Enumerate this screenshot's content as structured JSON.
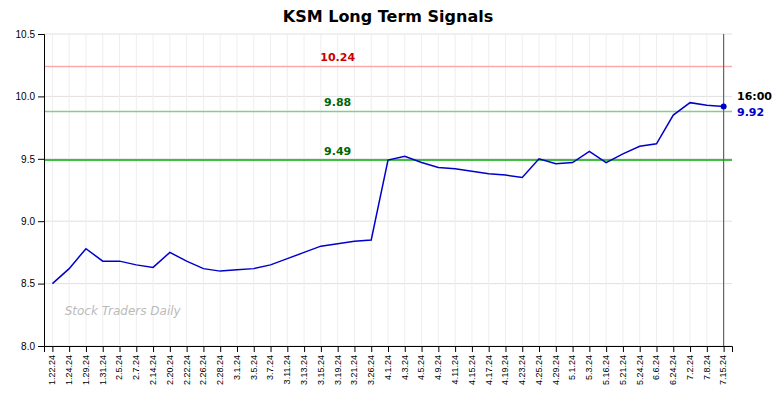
{
  "chart_data": {
    "type": "line",
    "title": "KSM Long Term Signals",
    "categories": [
      "1.22.24",
      "1.24.24",
      "1.29.24",
      "1.31.24",
      "2.5.24",
      "2.7.24",
      "2.14.24",
      "2.20.24",
      "2.22.24",
      "2.26.24",
      "2.28.24",
      "3.1.24",
      "3.5.24",
      "3.7.24",
      "3.11.24",
      "3.13.24",
      "3.15.24",
      "3.19.24",
      "3.21.24",
      "3.26.24",
      "4.1.24",
      "4.3.24",
      "4.5.24",
      "4.9.24",
      "4.11.24",
      "4.15.24",
      "4.17.24",
      "4.19.24",
      "4.23.24",
      "4.25.24",
      "4.29.24",
      "5.1.24",
      "5.3.24",
      "5.16.24",
      "5.21.24",
      "5.24.24",
      "6.6.24",
      "6.24.24",
      "7.2.24",
      "7.8.24",
      "7.15.24"
    ],
    "values": [
      8.5,
      8.62,
      8.78,
      8.68,
      8.68,
      8.65,
      8.63,
      8.75,
      8.68,
      8.62,
      8.6,
      8.61,
      8.62,
      8.65,
      8.7,
      8.75,
      8.8,
      8.82,
      8.84,
      8.85,
      9.49,
      9.52,
      9.47,
      9.43,
      9.42,
      9.4,
      9.38,
      9.37,
      9.35,
      9.5,
      9.46,
      9.47,
      9.56,
      9.47,
      9.54,
      9.6,
      9.62,
      9.85,
      9.95,
      9.93,
      9.92
    ],
    "color": "#0000cc",
    "ylim": [
      8.0,
      10.5
    ],
    "yticks": [
      {
        "value": 8.0,
        "label": "8.0"
      },
      8.5,
      {
        "value": 9.0,
        "label": "9.0"
      },
      9.5,
      {
        "value": 10.0,
        "label": "10.0"
      },
      10.5
    ],
    "grid": true,
    "reference_lines": [
      {
        "value": 10.24,
        "color": "#ffaaaa",
        "label_color": "#cc0000"
      },
      {
        "value": 9.88,
        "color": "#88cc88",
        "label_color": "#006600"
      },
      {
        "value": 9.49,
        "color": "#00aa00",
        "label_color": "#006600"
      }
    ],
    "last_point": {
      "label": "16:00",
      "value": 9.92,
      "line_color": "#666666"
    },
    "watermark": {
      "text": "Stock Traders Daily",
      "color": "#bbbbbb"
    }
  }
}
